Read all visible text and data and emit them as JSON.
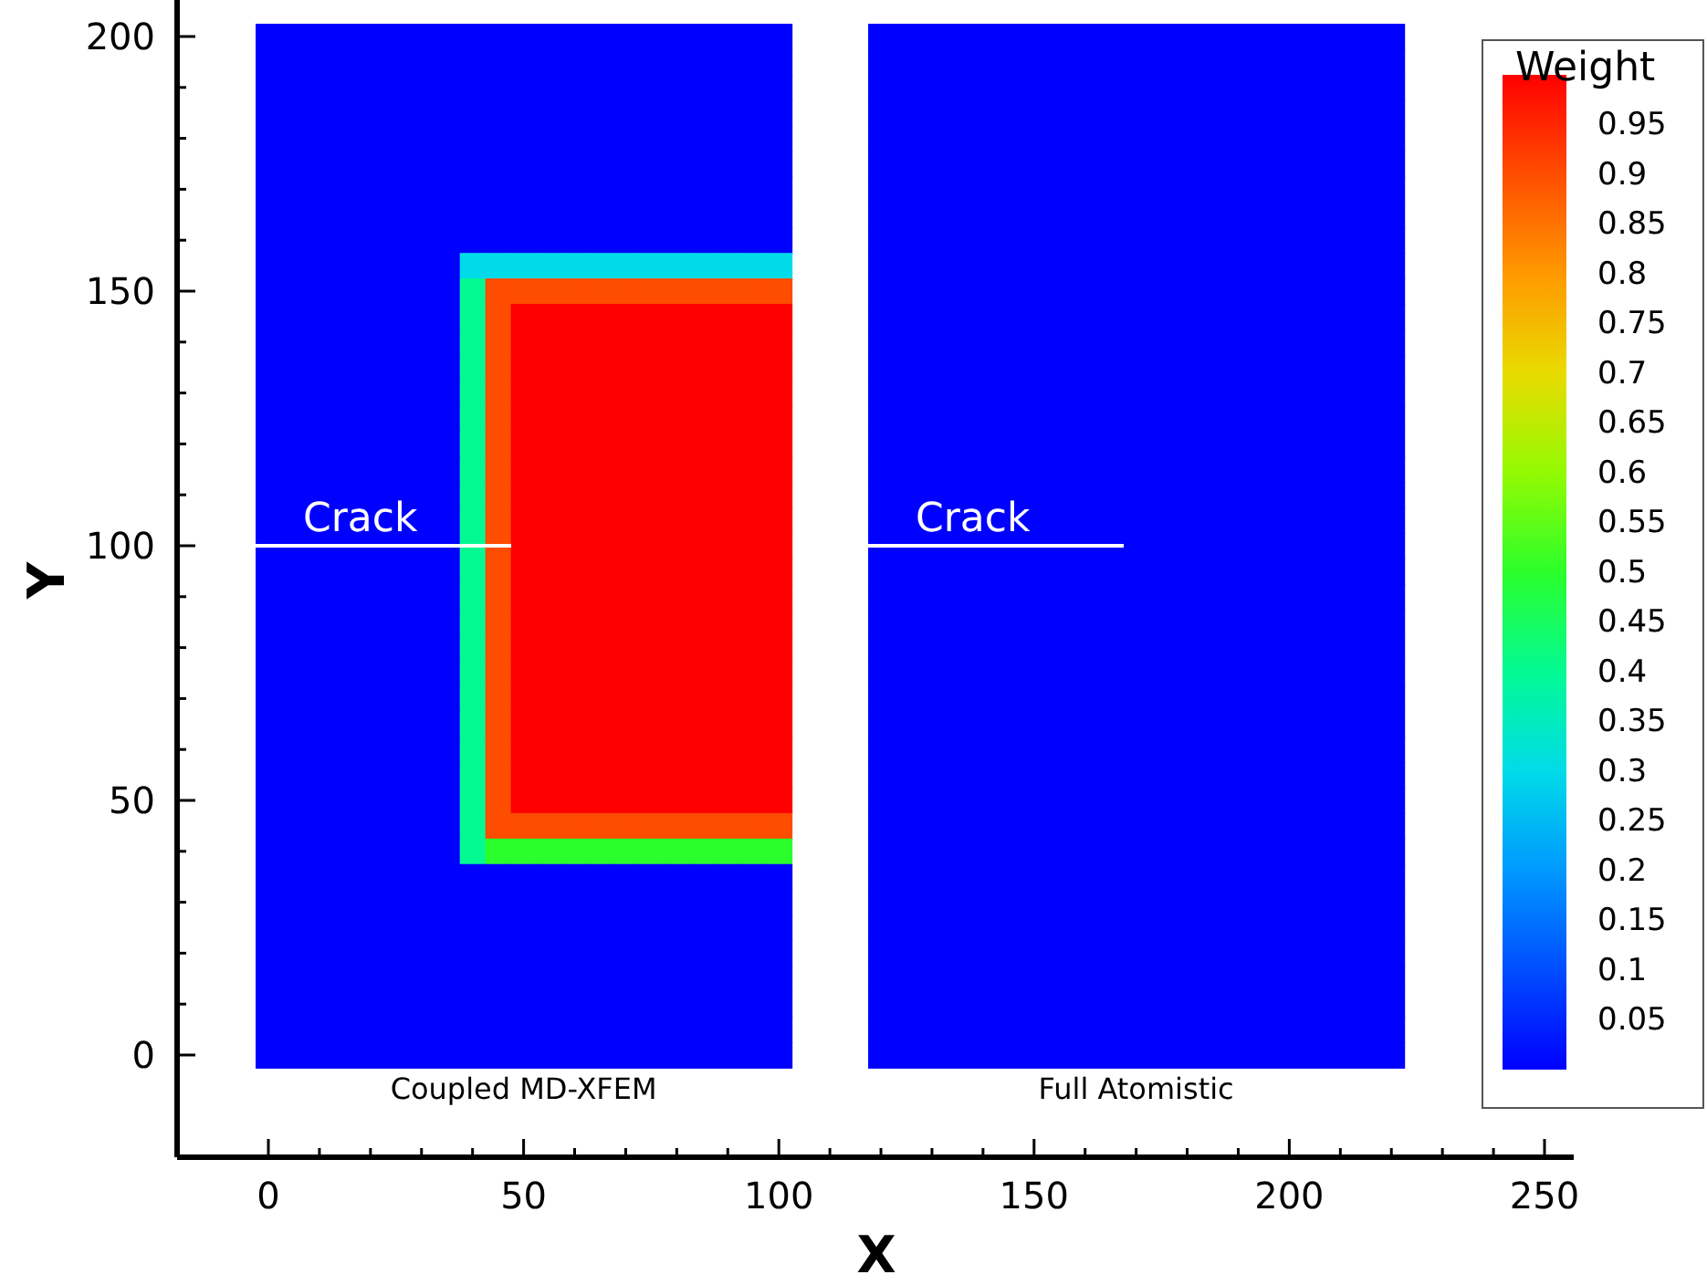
{
  "chart_data": {
    "type": "heatmap",
    "xlabel": "X",
    "ylabel": "Y",
    "clabel": "Weight",
    "annotations": [
      "Crack",
      "Crack",
      "Coupled MD-XFEM",
      "Full Atomistic"
    ],
    "clim": [
      0,
      1
    ],
    "cticks": [
      0.05,
      0.1,
      0.15,
      0.2,
      0.25,
      0.3,
      0.35,
      0.4,
      0.45,
      0.5,
      0.55,
      0.6,
      0.65,
      0.7,
      0.75,
      0.8,
      0.85,
      0.9,
      0.95
    ],
    "categories": [
      "0",
      null,
      null,
      null,
      null,
      null,
      null,
      null,
      null,
      null,
      "50",
      null,
      null,
      null,
      null,
      null,
      null,
      null,
      null,
      null,
      "100",
      null,
      null,
      null,
      null,
      null,
      null,
      null,
      null,
      null,
      "150",
      null,
      null,
      null,
      null,
      null,
      null,
      null,
      null,
      null,
      "200",
      null,
      null,
      null,
      null,
      null,
      null,
      null,
      null,
      null,
      "250"
    ],
    "y_categories": [
      "200",
      null,
      null,
      null,
      null,
      null,
      null,
      null,
      null,
      null,
      "150",
      null,
      null,
      null,
      null,
      null,
      null,
      null,
      null,
      null,
      "100",
      null,
      null,
      null,
      null,
      null,
      null,
      null,
      null,
      null,
      "50",
      null,
      null,
      null,
      null,
      null,
      null,
      null,
      null,
      null,
      "0"
    ],
    "cells": [
      [
        0,
        0,
        0,
        0,
        0,
        0,
        0,
        0,
        0,
        0,
        0,
        0,
        0,
        0,
        0,
        0,
        0,
        0,
        0,
        0,
        0,
        null,
        null,
        null,
        0,
        0,
        0,
        0,
        0,
        0,
        0,
        0,
        0,
        0,
        0,
        0,
        0,
        0,
        0,
        0,
        0,
        0,
        0,
        0,
        0,
        null,
        null,
        null,
        null,
        null,
        null
      ],
      [
        0,
        0,
        0,
        0,
        0,
        0,
        0,
        0,
        0,
        0,
        0,
        0,
        0,
        0,
        0,
        0,
        0,
        0,
        0,
        0,
        0,
        null,
        null,
        null,
        0,
        0,
        0,
        0,
        0,
        0,
        0,
        0,
        0,
        0,
        0,
        0,
        0,
        0,
        0,
        0,
        0,
        0,
        0,
        0,
        0,
        null,
        null,
        null,
        null,
        null,
        null
      ],
      [
        0,
        0,
        0,
        0,
        0,
        0,
        0,
        0,
        0,
        0,
        0,
        0,
        0,
        0,
        0,
        0,
        0,
        0,
        0,
        0,
        0,
        null,
        null,
        null,
        0,
        0,
        0,
        0,
        0,
        0,
        0,
        0,
        0,
        0,
        0,
        0,
        0,
        0,
        0,
        0,
        0,
        0,
        0,
        0,
        0,
        null,
        null,
        null,
        null,
        null,
        null
      ],
      [
        0,
        0,
        0,
        0,
        0,
        0,
        0,
        0,
        0,
        0,
        0,
        0,
        0,
        0,
        0,
        0,
        0,
        0,
        0,
        0,
        0,
        null,
        null,
        null,
        0,
        0,
        0,
        0,
        0,
        0,
        0,
        0,
        0,
        0,
        0,
        0,
        0,
        0,
        0,
        0,
        0,
        0,
        0,
        0,
        0,
        null,
        null,
        null,
        null,
        null,
        null
      ],
      [
        0,
        0,
        0,
        0,
        0,
        0,
        0,
        0,
        0,
        0,
        0,
        0,
        0,
        0,
        0,
        0,
        0,
        0,
        0,
        0,
        0,
        null,
        null,
        null,
        0,
        0,
        0,
        0,
        0,
        0,
        0,
        0,
        0,
        0,
        0,
        0,
        0,
        0,
        0,
        0,
        0,
        0,
        0,
        0,
        0,
        null,
        null,
        null,
        null,
        null,
        null
      ],
      [
        0,
        0,
        0,
        0,
        0,
        0,
        0,
        0,
        0,
        0,
        0,
        0,
        0,
        0,
        0,
        0,
        0,
        0,
        0,
        0,
        0,
        null,
        null,
        null,
        0,
        0,
        0,
        0,
        0,
        0,
        0,
        0,
        0,
        0,
        0,
        0,
        0,
        0,
        0,
        0,
        0,
        0,
        0,
        0,
        0,
        null,
        null,
        null,
        null,
        null,
        null
      ],
      [
        0,
        0,
        0,
        0,
        0,
        0,
        0,
        0,
        0,
        0,
        0,
        0,
        0,
        0,
        0,
        0,
        0,
        0,
        0,
        0,
        0,
        null,
        null,
        null,
        0,
        0,
        0,
        0,
        0,
        0,
        0,
        0,
        0,
        0,
        0,
        0,
        0,
        0,
        0,
        0,
        0,
        0,
        0,
        0,
        0,
        null,
        null,
        null,
        null,
        null,
        null
      ],
      [
        0,
        0,
        0,
        0,
        0,
        0,
        0,
        0,
        0,
        0,
        0,
        0,
        0,
        0,
        0,
        0,
        0,
        0,
        0,
        0,
        0,
        null,
        null,
        null,
        0,
        0,
        0,
        0,
        0,
        0,
        0,
        0,
        0,
        0,
        0,
        0,
        0,
        0,
        0,
        0,
        0,
        0,
        0,
        0,
        0,
        null,
        null,
        null,
        null,
        null,
        null
      ],
      [
        0,
        0,
        0,
        0,
        0,
        0,
        0,
        0,
        0,
        0,
        0,
        0,
        0,
        0,
        0,
        0,
        0,
        0,
        0,
        0,
        0,
        null,
        null,
        null,
        0,
        0,
        0,
        0,
        0,
        0,
        0,
        0,
        0,
        0,
        0,
        0,
        0,
        0,
        0,
        0,
        0,
        0,
        0,
        0,
        0,
        null,
        null,
        null,
        null,
        null,
        null
      ],
      [
        0,
        0,
        0,
        0,
        0,
        0,
        0,
        0,
        0.3,
        0.3,
        0.3,
        0.3,
        0.3,
        0.3,
        0.3,
        0.3,
        0.3,
        0.3,
        0.3,
        0.3,
        0.3,
        null,
        null,
        null,
        0,
        0,
        0,
        0,
        0,
        0,
        0,
        0,
        0,
        0,
        0,
        0,
        0,
        0,
        0,
        0,
        0,
        0,
        0,
        0,
        0,
        null,
        null,
        null,
        null,
        null,
        null
      ],
      [
        0,
        0,
        0,
        0,
        0,
        0,
        0,
        0,
        0.4,
        0.9,
        0.9,
        0.9,
        0.9,
        0.9,
        0.9,
        0.9,
        0.9,
        0.9,
        0.9,
        0.9,
        0.9,
        null,
        null,
        null,
        0,
        0,
        0,
        0,
        0,
        0,
        0,
        0,
        0,
        0,
        0,
        0,
        0,
        0,
        0,
        0,
        0,
        0,
        0,
        0,
        0,
        null,
        null,
        null,
        null,
        null,
        null
      ],
      [
        0,
        0,
        0,
        0,
        0,
        0,
        0,
        0,
        0.4,
        0.9,
        1,
        1,
        1,
        1,
        1,
        1,
        1,
        1,
        1,
        1,
        1,
        null,
        null,
        null,
        0,
        0,
        0,
        0,
        0,
        0,
        0,
        0,
        0,
        0,
        0,
        0,
        0,
        0,
        0,
        0,
        0,
        0,
        0,
        0,
        0,
        null,
        null,
        null,
        null,
        null,
        null
      ],
      [
        0,
        0,
        0,
        0,
        0,
        0,
        0,
        0,
        0.4,
        0.9,
        1,
        1,
        1,
        1,
        1,
        1,
        1,
        1,
        1,
        1,
        1,
        null,
        null,
        null,
        0,
        0,
        0,
        0,
        0,
        0,
        0,
        0,
        0,
        0,
        0,
        0,
        0,
        0,
        0,
        0,
        0,
        0,
        0,
        0,
        0,
        null,
        null,
        null,
        null,
        null,
        null
      ],
      [
        0,
        0,
        0,
        0,
        0,
        0,
        0,
        0,
        0.4,
        0.9,
        1,
        1,
        1,
        1,
        1,
        1,
        1,
        1,
        1,
        1,
        1,
        null,
        null,
        null,
        0,
        0,
        0,
        0,
        0,
        0,
        0,
        0,
        0,
        0,
        0,
        0,
        0,
        0,
        0,
        0,
        0,
        0,
        0,
        0,
        0,
        null,
        null,
        null,
        null,
        null,
        null
      ],
      [
        0,
        0,
        0,
        0,
        0,
        0,
        0,
        0,
        0.4,
        0.9,
        1,
        1,
        1,
        1,
        1,
        1,
        1,
        1,
        1,
        1,
        1,
        null,
        null,
        null,
        0,
        0,
        0,
        0,
        0,
        0,
        0,
        0,
        0,
        0,
        0,
        0,
        0,
        0,
        0,
        0,
        0,
        0,
        0,
        0,
        0,
        null,
        null,
        null,
        null,
        null,
        null
      ],
      [
        0,
        0,
        0,
        0,
        0,
        0,
        0,
        0,
        0.4,
        0.9,
        1,
        1,
        1,
        1,
        1,
        1,
        1,
        1,
        1,
        1,
        1,
        null,
        null,
        null,
        0,
        0,
        0,
        0,
        0,
        0,
        0,
        0,
        0,
        0,
        0,
        0,
        0,
        0,
        0,
        0,
        0,
        0,
        0,
        0,
        0,
        null,
        null,
        null,
        null,
        null,
        null
      ],
      [
        0,
        0,
        0,
        0,
        0,
        0,
        0,
        0,
        0.4,
        0.9,
        1,
        1,
        1,
        1,
        1,
        1,
        1,
        1,
        1,
        1,
        1,
        null,
        null,
        null,
        0,
        0,
        0,
        0,
        0,
        0,
        0,
        0,
        0,
        0,
        0,
        0,
        0,
        0,
        0,
        0,
        0,
        0,
        0,
        0,
        0,
        null,
        null,
        null,
        null,
        null,
        null
      ],
      [
        0,
        0,
        0,
        0,
        0,
        0,
        0,
        0,
        0.4,
        0.9,
        1,
        1,
        1,
        1,
        1,
        1,
        1,
        1,
        1,
        1,
        1,
        null,
        null,
        null,
        0,
        0,
        0,
        0,
        0,
        0,
        0,
        0,
        0,
        0,
        0,
        0,
        0,
        0,
        0,
        0,
        0,
        0,
        0,
        0,
        0,
        null,
        null,
        null,
        null,
        null,
        null
      ],
      [
        0,
        0,
        0,
        0,
        0,
        0,
        0,
        0,
        0.4,
        0.9,
        1,
        1,
        1,
        1,
        1,
        1,
        1,
        1,
        1,
        1,
        1,
        null,
        null,
        null,
        0,
        0,
        0,
        0,
        0,
        0,
        0,
        0,
        0,
        0,
        0,
        0,
        0,
        0,
        0,
        0,
        0,
        0,
        0,
        0,
        0,
        null,
        null,
        null,
        null,
        null,
        null
      ],
      [
        0,
        0,
        0,
        0,
        0,
        0,
        0,
        0,
        0.4,
        0.9,
        1,
        1,
        1,
        1,
        1,
        1,
        1,
        1,
        1,
        1,
        1,
        null,
        null,
        null,
        0,
        0,
        0,
        0,
        0,
        0,
        0,
        0,
        0,
        0,
        0,
        0,
        0,
        0,
        0,
        0,
        0,
        0,
        0,
        0,
        0,
        null,
        null,
        null,
        null,
        null,
        null
      ],
      [
        0,
        0,
        0,
        0,
        0,
        0,
        0,
        0,
        0.4,
        0.9,
        1,
        1,
        1,
        1,
        1,
        1,
        1,
        1,
        1,
        1,
        1,
        null,
        null,
        null,
        0,
        0,
        0,
        0,
        0,
        0,
        0,
        0,
        0,
        0,
        0,
        0,
        0,
        0,
        0,
        0,
        0,
        0,
        0,
        0,
        0,
        null,
        null,
        null,
        null,
        null,
        null
      ],
      [
        0,
        0,
        0,
        0,
        0,
        0,
        0,
        0,
        0.4,
        0.9,
        1,
        1,
        1,
        1,
        1,
        1,
        1,
        1,
        1,
        1,
        1,
        null,
        null,
        null,
        0,
        0,
        0,
        0,
        0,
        0,
        0,
        0,
        0,
        0,
        0,
        0,
        0,
        0,
        0,
        0,
        0,
        0,
        0,
        0,
        0,
        null,
        null,
        null,
        null,
        null,
        null
      ],
      [
        0,
        0,
        0,
        0,
        0,
        0,
        0,
        0,
        0.4,
        0.9,
        1,
        1,
        1,
        1,
        1,
        1,
        1,
        1,
        1,
        1,
        1,
        null,
        null,
        null,
        0,
        0,
        0,
        0,
        0,
        0,
        0,
        0,
        0,
        0,
        0,
        0,
        0,
        0,
        0,
        0,
        0,
        0,
        0,
        0,
        0,
        null,
        null,
        null,
        null,
        null,
        null
      ],
      [
        0,
        0,
        0,
        0,
        0,
        0,
        0,
        0,
        0.4,
        0.9,
        1,
        1,
        1,
        1,
        1,
        1,
        1,
        1,
        1,
        1,
        1,
        null,
        null,
        null,
        0,
        0,
        0,
        0,
        0,
        0,
        0,
        0,
        0,
        0,
        0,
        0,
        0,
        0,
        0,
        0,
        0,
        0,
        0,
        0,
        0,
        null,
        null,
        null,
        null,
        null,
        null
      ],
      [
        0,
        0,
        0,
        0,
        0,
        0,
        0,
        0,
        0.4,
        0.9,
        1,
        1,
        1,
        1,
        1,
        1,
        1,
        1,
        1,
        1,
        1,
        null,
        null,
        null,
        0,
        0,
        0,
        0,
        0,
        0,
        0,
        0,
        0,
        0,
        0,
        0,
        0,
        0,
        0,
        0,
        0,
        0,
        0,
        0,
        0,
        null,
        null,
        null,
        null,
        null,
        null
      ],
      [
        0,
        0,
        0,
        0,
        0,
        0,
        0,
        0,
        0.4,
        0.9,
        1,
        1,
        1,
        1,
        1,
        1,
        1,
        1,
        1,
        1,
        1,
        null,
        null,
        null,
        0,
        0,
        0,
        0,
        0,
        0,
        0,
        0,
        0,
        0,
        0,
        0,
        0,
        0,
        0,
        0,
        0,
        0,
        0,
        0,
        0,
        null,
        null,
        null,
        null,
        null,
        null
      ],
      [
        0,
        0,
        0,
        0,
        0,
        0,
        0,
        0,
        0.4,
        0.9,
        1,
        1,
        1,
        1,
        1,
        1,
        1,
        1,
        1,
        1,
        1,
        null,
        null,
        null,
        0,
        0,
        0,
        0,
        0,
        0,
        0,
        0,
        0,
        0,
        0,
        0,
        0,
        0,
        0,
        0,
        0,
        0,
        0,
        0,
        0,
        null,
        null,
        null,
        null,
        null,
        null
      ],
      [
        0,
        0,
        0,
        0,
        0,
        0,
        0,
        0,
        0.4,
        0.9,
        1,
        1,
        1,
        1,
        1,
        1,
        1,
        1,
        1,
        1,
        1,
        null,
        null,
        null,
        0,
        0,
        0,
        0,
        0,
        0,
        0,
        0,
        0,
        0,
        0,
        0,
        0,
        0,
        0,
        0,
        0,
        0,
        0,
        0,
        0,
        null,
        null,
        null,
        null,
        null,
        null
      ],
      [
        0,
        0,
        0,
        0,
        0,
        0,
        0,
        0,
        0.4,
        0.9,
        1,
        1,
        1,
        1,
        1,
        1,
        1,
        1,
        1,
        1,
        1,
        null,
        null,
        null,
        0,
        0,
        0,
        0,
        0,
        0,
        0,
        0,
        0,
        0,
        0,
        0,
        0,
        0,
        0,
        0,
        0,
        0,
        0,
        0,
        0,
        null,
        null,
        null,
        null,
        null,
        null
      ],
      [
        0,
        0,
        0,
        0,
        0,
        0,
        0,
        0,
        0.4,
        0.9,
        1,
        1,
        1,
        1,
        1,
        1,
        1,
        1,
        1,
        1,
        1,
        null,
        null,
        null,
        0,
        0,
        0,
        0,
        0,
        0,
        0,
        0,
        0,
        0,
        0,
        0,
        0,
        0,
        0,
        0,
        0,
        0,
        0,
        0,
        0,
        null,
        null,
        null,
        null,
        null,
        null
      ],
      [
        0,
        0,
        0,
        0,
        0,
        0,
        0,
        0,
        0.4,
        0.9,
        1,
        1,
        1,
        1,
        1,
        1,
        1,
        1,
        1,
        1,
        1,
        null,
        null,
        null,
        0,
        0,
        0,
        0,
        0,
        0,
        0,
        0,
        0,
        0,
        0,
        0,
        0,
        0,
        0,
        0,
        0,
        0,
        0,
        0,
        0,
        null,
        null,
        null,
        null,
        null,
        null
      ],
      [
        0,
        0,
        0,
        0,
        0,
        0,
        0,
        0,
        0.4,
        0.9,
        0.9,
        0.9,
        0.9,
        0.9,
        0.9,
        0.9,
        0.9,
        0.9,
        0.9,
        0.9,
        0.9,
        null,
        null,
        null,
        0,
        0,
        0,
        0,
        0,
        0,
        0,
        0,
        0,
        0,
        0,
        0,
        0,
        0,
        0,
        0,
        0,
        0,
        0,
        0,
        0,
        null,
        null,
        null,
        null,
        null,
        null
      ],
      [
        0,
        0,
        0,
        0,
        0,
        0,
        0,
        0,
        0.4,
        0.5,
        0.5,
        0.5,
        0.5,
        0.5,
        0.5,
        0.5,
        0.5,
        0.5,
        0.5,
        0.5,
        0.5,
        null,
        null,
        null,
        0,
        0,
        0,
        0,
        0,
        0,
        0,
        0,
        0,
        0,
        0,
        0,
        0,
        0,
        0,
        0,
        0,
        0,
        0,
        0,
        0,
        null,
        null,
        null,
        null,
        null,
        null
      ],
      [
        0,
        0,
        0,
        0,
        0,
        0,
        0,
        0,
        0,
        0,
        0,
        0,
        0,
        0,
        0,
        0,
        0,
        0,
        0,
        0,
        0,
        null,
        null,
        null,
        0,
        0,
        0,
        0,
        0,
        0,
        0,
        0,
        0,
        0,
        0,
        0,
        0,
        0,
        0,
        0,
        0,
        0,
        0,
        0,
        0,
        null,
        null,
        null,
        null,
        null,
        null
      ],
      [
        0,
        0,
        0,
        0,
        0,
        0,
        0,
        0,
        0,
        0,
        0,
        0,
        0,
        0,
        0,
        0,
        0,
        0,
        0,
        0,
        0,
        null,
        null,
        null,
        0,
        0,
        0,
        0,
        0,
        0,
        0,
        0,
        0,
        0,
        0,
        0,
        0,
        0,
        0,
        0,
        0,
        0,
        0,
        0,
        0,
        null,
        null,
        null,
        null,
        null,
        null
      ],
      [
        0,
        0,
        0,
        0,
        0,
        0,
        0,
        0,
        0,
        0,
        0,
        0,
        0,
        0,
        0,
        0,
        0,
        0,
        0,
        0,
        0,
        null,
        null,
        null,
        0,
        0,
        0,
        0,
        0,
        0,
        0,
        0,
        0,
        0,
        0,
        0,
        0,
        0,
        0,
        0,
        0,
        0,
        0,
        0,
        0,
        null,
        null,
        null,
        null,
        null,
        null
      ],
      [
        0,
        0,
        0,
        0,
        0,
        0,
        0,
        0,
        0,
        0,
        0,
        0,
        0,
        0,
        0,
        0,
        0,
        0,
        0,
        0,
        0,
        null,
        null,
        null,
        0,
        0,
        0,
        0,
        0,
        0,
        0,
        0,
        0,
        0,
        0,
        0,
        0,
        0,
        0,
        0,
        0,
        0,
        0,
        0,
        0,
        null,
        null,
        null,
        null,
        null,
        null
      ],
      [
        0,
        0,
        0,
        0,
        0,
        0,
        0,
        0,
        0,
        0,
        0,
        0,
        0,
        0,
        0,
        0,
        0,
        0,
        0,
        0,
        0,
        null,
        null,
        null,
        0,
        0,
        0,
        0,
        0,
        0,
        0,
        0,
        0,
        0,
        0,
        0,
        0,
        0,
        0,
        0,
        0,
        0,
        0,
        0,
        0,
        null,
        null,
        null,
        null,
        null,
        null
      ],
      [
        0,
        0,
        0,
        0,
        0,
        0,
        0,
        0,
        0,
        0,
        0,
        0,
        0,
        0,
        0,
        0,
        0,
        0,
        0,
        0,
        0,
        null,
        null,
        null,
        0,
        0,
        0,
        0,
        0,
        0,
        0,
        0,
        0,
        0,
        0,
        0,
        0,
        0,
        0,
        0,
        0,
        0,
        0,
        0,
        0,
        null,
        null,
        null,
        null,
        null,
        null
      ],
      [
        0,
        0,
        0,
        0,
        0,
        0,
        0,
        0,
        0,
        0,
        0,
        0,
        0,
        0,
        0,
        0,
        0,
        0,
        0,
        0,
        0,
        null,
        null,
        null,
        0,
        0,
        0,
        0,
        0,
        0,
        0,
        0,
        0,
        0,
        0,
        0,
        0,
        0,
        0,
        0,
        0,
        0,
        0,
        0,
        0,
        null,
        null,
        null,
        null,
        null,
        null
      ],
      [
        0,
        0,
        0,
        0,
        0,
        0,
        0,
        0,
        0,
        0,
        0,
        0,
        0,
        0,
        0,
        0,
        0,
        0,
        0,
        0,
        0,
        null,
        null,
        null,
        0,
        0,
        0,
        0,
        0,
        0,
        0,
        0,
        0,
        0,
        0,
        0,
        0,
        0,
        0,
        0,
        0,
        0,
        0,
        0,
        0,
        null,
        null,
        null,
        null,
        null,
        null
      ]
    ]
  }
}
